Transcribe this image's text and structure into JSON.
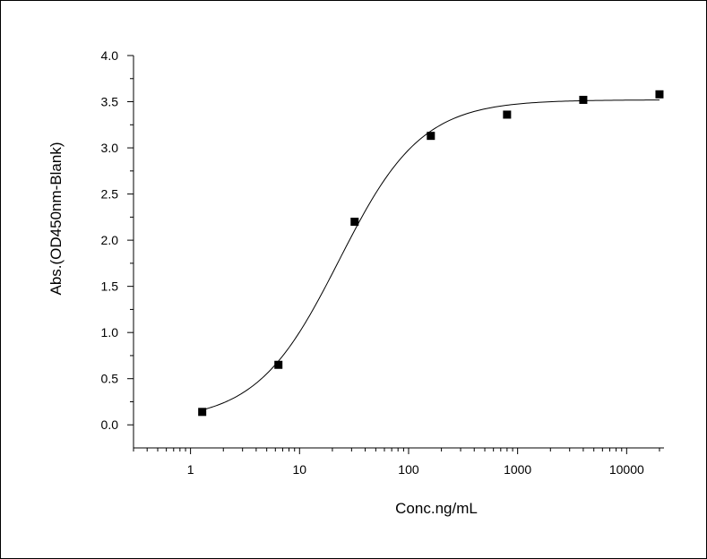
{
  "chart_data": {
    "type": "scatter",
    "xlabel": "Conc.ng/mL",
    "ylabel": "Abs.(OD450nm-Blank)",
    "xscale": "log",
    "xlim": [
      0.3,
      22000
    ],
    "ylim": [
      -0.25,
      4.0
    ],
    "xticks": [
      1,
      10,
      100,
      1000,
      10000
    ],
    "xtick_labels": [
      "1",
      "10",
      "100",
      "1000",
      "10000"
    ],
    "yticks": [
      0.0,
      0.5,
      1.0,
      1.5,
      2.0,
      2.5,
      3.0,
      3.5,
      4.0
    ],
    "ytick_labels": [
      "0.0",
      "0.5",
      "1.0",
      "1.5",
      "2.0",
      "2.5",
      "3.0",
      "3.5",
      "4.0"
    ],
    "grid": false,
    "series": [
      {
        "style": "points",
        "x": [
          1.28,
          6.4,
          32,
          160,
          800,
          4000,
          20000
        ],
        "y": [
          0.14,
          0.65,
          2.2,
          3.13,
          3.36,
          3.52,
          3.58
        ]
      },
      {
        "style": "fitted-curve",
        "model": "4PL",
        "params": {
          "bottom": 0.04,
          "top": 3.52,
          "ec50": 23,
          "hill": 1.15
        },
        "x_range": [
          1.28,
          20000
        ]
      }
    ]
  }
}
